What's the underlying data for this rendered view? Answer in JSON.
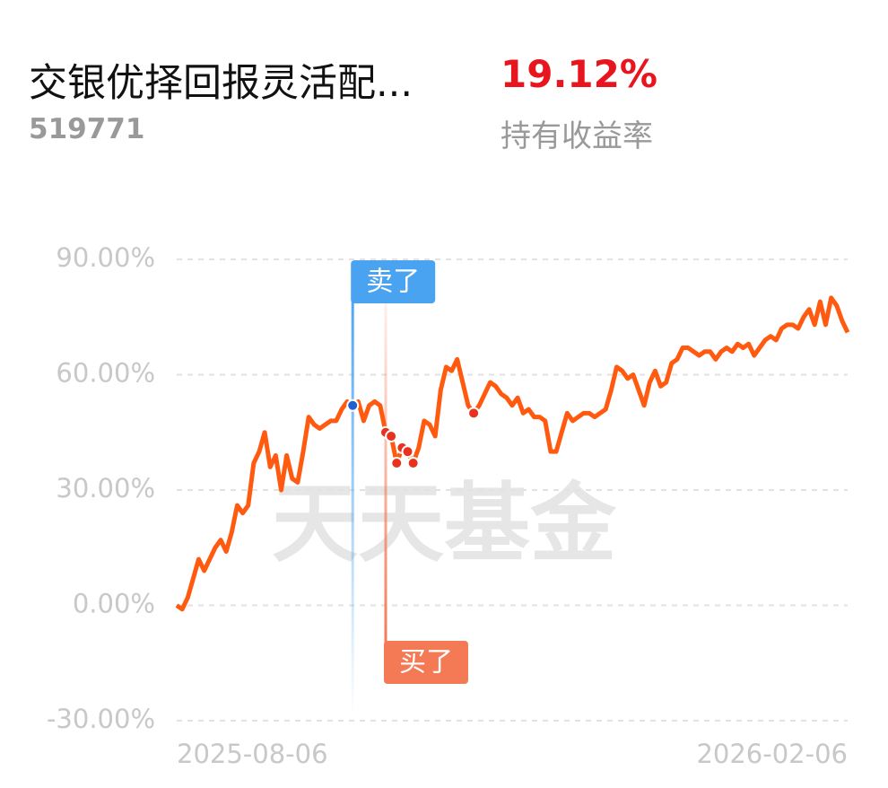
{
  "header": {
    "fund_name": "交银优择回报灵活配...",
    "fund_code": "519771",
    "return_value": "19.12%",
    "return_label": "持有收益率"
  },
  "chart_data": {
    "type": "line",
    "watermark": "天天基金",
    "categories": [
      "2025-08-06",
      null,
      null,
      null,
      null,
      null,
      null,
      null,
      null,
      null,
      null,
      null,
      null,
      null,
      null,
      null,
      null,
      null,
      null,
      null,
      null,
      null,
      null,
      null,
      null,
      null,
      null,
      null,
      null,
      null,
      null,
      null,
      null,
      null,
      null,
      null,
      null,
      null,
      null,
      null,
      null,
      null,
      null,
      null,
      null,
      null,
      null,
      null,
      null,
      null,
      null,
      null,
      null,
      null,
      null,
      null,
      null,
      null,
      null,
      null,
      null,
      null,
      null,
      null,
      null,
      null,
      null,
      null,
      null,
      null,
      null,
      null,
      null,
      null,
      null,
      null,
      null,
      null,
      null,
      null,
      null,
      null,
      null,
      null,
      null,
      null,
      null,
      null,
      null,
      null,
      null,
      null,
      null,
      null,
      null,
      null,
      null,
      null,
      null,
      null,
      null,
      null,
      null,
      null,
      null,
      null,
      null,
      null,
      null,
      null,
      null,
      null,
      null,
      null,
      null,
      null,
      null,
      null,
      null,
      null,
      null,
      null,
      "2026-02-06"
    ],
    "series": [
      {
        "color": "#ff5a0f",
        "values": [
          0,
          -1,
          2,
          7,
          12,
          9,
          12,
          15,
          17,
          14,
          19,
          26,
          24,
          26,
          37,
          40,
          45,
          36,
          39,
          30,
          39,
          33,
          32,
          40,
          49,
          47,
          46,
          47,
          48,
          48,
          51,
          53,
          52,
          53,
          48,
          52,
          53,
          52,
          45,
          44,
          37,
          41,
          40,
          37,
          41,
          48,
          47,
          44,
          56,
          62,
          61,
          64,
          58,
          52,
          50,
          52,
          55,
          58,
          57,
          55,
          54,
          52,
          54,
          50,
          51,
          49,
          49,
          48,
          40,
          40,
          45,
          50,
          48,
          49,
          50,
          50,
          49,
          50,
          51,
          56,
          62,
          61,
          59,
          60,
          56,
          52,
          58,
          61,
          57,
          58,
          63,
          64,
          67,
          67,
          66,
          65,
          66,
          66,
          64,
          66,
          67,
          66,
          68,
          67,
          68,
          65,
          67,
          69,
          70,
          69,
          72,
          73,
          73,
          72,
          75,
          77,
          73,
          79,
          73,
          80,
          78,
          74,
          71
        ]
      }
    ],
    "trades": [
      {
        "label": "卖了",
        "color": "#4aa3f0",
        "index": 32
      },
      {
        "label": "买了",
        "color": "#f47a55",
        "index": 38
      }
    ],
    "buy_points": [
      38,
      39,
      40,
      41,
      42,
      43,
      54
    ],
    "ylim": [
      -30,
      90
    ],
    "yticks": [
      {
        "value": -30,
        "label": "-30.00%"
      },
      {
        "value": 0,
        "label": "0.00%"
      },
      {
        "value": 30,
        "label": "30.00%"
      },
      {
        "value": 60,
        "label": "60.00%"
      },
      {
        "value": 90,
        "label": "90.00%"
      }
    ],
    "grid": true
  }
}
